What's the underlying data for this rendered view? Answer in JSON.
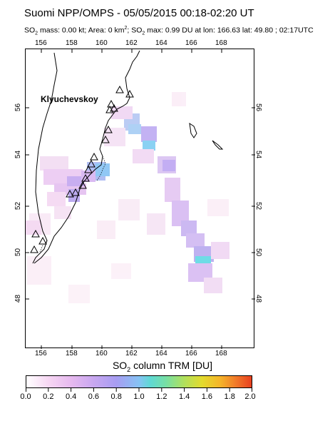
{
  "title": "Suomi NPP/OMPS - 05/05/2015 00:18-02:20 UT",
  "subtitle": {
    "mass_prefix": "SO",
    "mass_sub": "2",
    "mass_text": " mass: 0.00 kt; Area: 0 km",
    "area_sup": "2",
    "max_sep": "; SO",
    "max_sub": "2",
    "max_text": " max: 0.99 DU at lon: 166.63 lat: 49.80 ; 02:17UTC"
  },
  "map": {
    "lon_ticks": [
      "156",
      "158",
      "160",
      "162",
      "164",
      "166",
      "168"
    ],
    "lat_ticks": [
      "56",
      "54",
      "52",
      "50",
      "48"
    ],
    "volcano_label": "Klyuchevskoy"
  },
  "colorbar": {
    "title_prefix": "SO",
    "title_sub": "2",
    "title_text": " column TRM [DU]",
    "labels": [
      "0.0",
      "0.2",
      "0.4",
      "0.6",
      "0.8",
      "1.0",
      "1.2",
      "1.4",
      "1.6",
      "1.8",
      "2.0"
    ]
  }
}
